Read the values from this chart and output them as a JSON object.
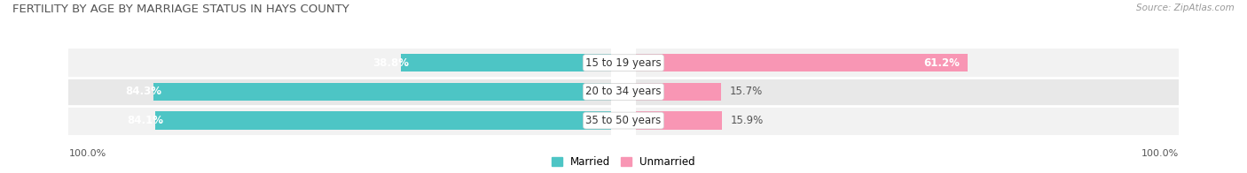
{
  "title": "FERTILITY BY AGE BY MARRIAGE STATUS IN HAYS COUNTY",
  "source": "Source: ZipAtlas.com",
  "categories": [
    "15 to 19 years",
    "20 to 34 years",
    "35 to 50 years"
  ],
  "married_pct": [
    38.8,
    84.3,
    84.1
  ],
  "unmarried_pct": [
    61.2,
    15.7,
    15.9
  ],
  "married_color": "#4DC5C5",
  "unmarried_color": "#F896B4",
  "row_bg_light": "#F2F2F2",
  "row_bg_dark": "#E8E8E8",
  "title_fontsize": 9.5,
  "source_fontsize": 7.5,
  "label_fontsize": 8.5,
  "pct_fontsize": 8.5,
  "bar_height": 0.62,
  "legend_labels": [
    "Married",
    "Unmarried"
  ]
}
